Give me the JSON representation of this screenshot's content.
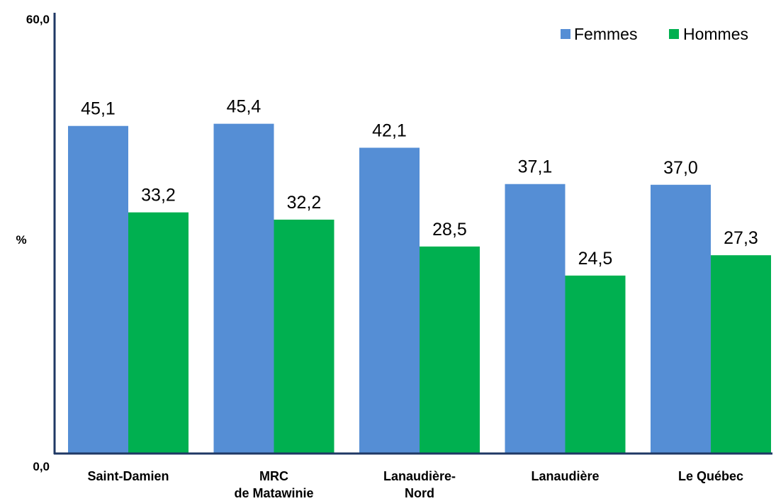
{
  "chart_data": {
    "type": "bar",
    "categories": [
      "Saint-Damien",
      "MRC\nde Matawinie",
      "Lanaudière-\nNord",
      "Lanaudière",
      "Le Québec"
    ],
    "series": [
      {
        "name": "Femmes",
        "values": [
          45.1,
          45.4,
          42.1,
          37.1,
          37.0
        ],
        "value_labels": [
          "45,1",
          "45,4",
          "42,1",
          "37,1",
          "37,0"
        ],
        "color": "#558ED5"
      },
      {
        "name": "Hommes",
        "values": [
          33.2,
          32.2,
          28.5,
          24.5,
          27.3
        ],
        "value_labels": [
          "33,2",
          "32,2",
          "28,5",
          "24,5",
          "27,3"
        ],
        "color": "#00B050"
      }
    ],
    "ylabel": "%",
    "yticks": [
      "0,0",
      "60,0"
    ],
    "ylim": [
      0,
      60
    ],
    "legend_position": "top-right",
    "axis_color": "#1F3864",
    "grid": false
  }
}
